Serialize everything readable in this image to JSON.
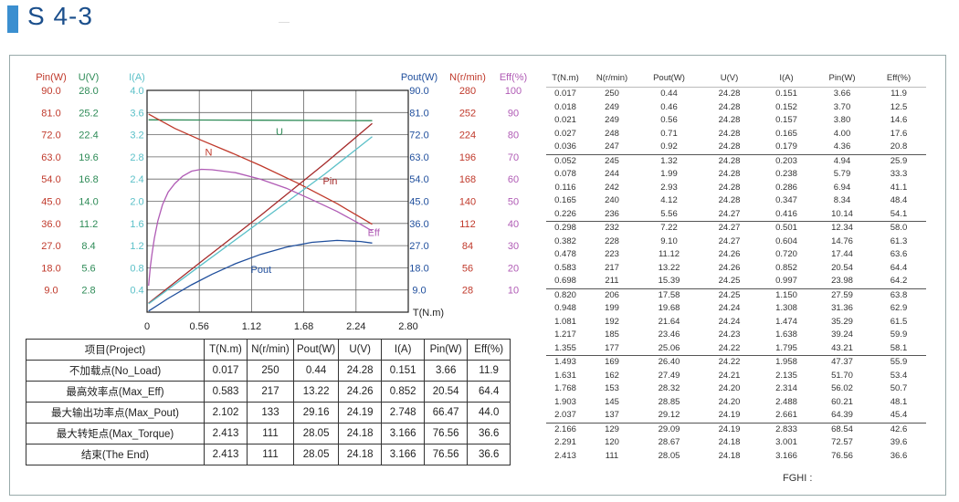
{
  "header": {
    "title": "S 4-3"
  },
  "chart_data": {
    "type": "line",
    "xlabel": "T(N.m)",
    "xlim": [
      0,
      2.8
    ],
    "x_ticks": [
      "0",
      "0.56",
      "1.12",
      "1.68",
      "2.24",
      "2.80"
    ],
    "left_axes": [
      {
        "name": "Pin(W)",
        "color": "#c0392b",
        "ticks": [
          "90.0",
          "81.0",
          "72.0",
          "63.0",
          "54.0",
          "45.0",
          "36.0",
          "27.0",
          "18.0",
          "9.0"
        ]
      },
      {
        "name": "U(V)",
        "color": "#2e8b57",
        "ticks": [
          "28.0",
          "25.2",
          "22.4",
          "19.6",
          "16.8",
          "14.0",
          "11.2",
          "8.4",
          "5.6",
          "2.8"
        ]
      },
      {
        "name": "I(A)",
        "color": "#5bc0c8",
        "ticks": [
          "4.0",
          "3.6",
          "3.2",
          "2.8",
          "2.4",
          "2.0",
          "1.6",
          "1.2",
          "0.8",
          "0.4"
        ]
      }
    ],
    "right_axes": [
      {
        "name": "Pout(W)",
        "color": "#1f4e9c",
        "ticks": [
          "90.0",
          "81.0",
          "72.0",
          "63.0",
          "54.0",
          "45.0",
          "36.0",
          "27.0",
          "18.0",
          "9.0"
        ]
      },
      {
        "name": "N(r/min)",
        "color": "#c0392b",
        "ticks": [
          "280",
          "252",
          "224",
          "196",
          "168",
          "140",
          "112",
          "84",
          "56",
          "28"
        ]
      },
      {
        "name": "Eff(%)",
        "color": "#b05bb5",
        "ticks": [
          "100",
          "90",
          "80",
          "70",
          "60",
          "50",
          "40",
          "30",
          "20",
          "10"
        ]
      }
    ],
    "series": [
      {
        "name": "U",
        "color": "#2e8b57",
        "axis_max": 28,
        "x": [
          0.017,
          0.583,
          1.217,
          1.903,
          2.413
        ],
        "y": [
          24.28,
          24.26,
          24.23,
          24.2,
          24.18
        ]
      },
      {
        "name": "N",
        "color": "#c0392b",
        "axis_max": 280,
        "x": [
          0.017,
          0.298,
          0.583,
          0.948,
          1.217,
          1.631,
          2.037,
          2.413
        ],
        "y": [
          250,
          232,
          217,
          199,
          185,
          162,
          137,
          111
        ]
      },
      {
        "name": "Pin",
        "color": "#a52a2a",
        "axis_max": 90,
        "x": [
          0.017,
          0.583,
          1.217,
          1.903,
          2.413
        ],
        "y": [
          3.66,
          20.54,
          39.24,
          60.21,
          76.56
        ]
      },
      {
        "name": "I",
        "color": "#5bc0c8",
        "axis_max": 4,
        "x": [
          0.017,
          0.583,
          1.217,
          1.903,
          2.413
        ],
        "y": [
          0.151,
          0.852,
          1.638,
          2.488,
          3.166
        ]
      },
      {
        "name": "Pout",
        "color": "#1f4e9c",
        "axis_max": 90,
        "x": [
          0.017,
          0.226,
          0.478,
          0.698,
          0.948,
          1.217,
          1.493,
          1.768,
          2.037,
          2.291,
          2.413
        ],
        "y": [
          0.44,
          5.56,
          11.12,
          15.39,
          19.68,
          23.46,
          26.4,
          28.32,
          29.12,
          28.67,
          28.05
        ]
      },
      {
        "name": "Eff",
        "color": "#b05bb5",
        "axis_max": 100,
        "x": [
          0.017,
          0.036,
          0.052,
          0.078,
          0.116,
          0.165,
          0.226,
          0.298,
          0.382,
          0.478,
          0.583,
          0.698,
          0.948,
          1.217,
          1.493,
          1.768,
          2.037,
          2.291,
          2.413
        ],
        "y": [
          11.9,
          20.8,
          25.9,
          33.3,
          41.1,
          48.4,
          54.1,
          58.0,
          61.3,
          63.6,
          64.4,
          64.2,
          62.9,
          59.9,
          55.9,
          50.7,
          45.4,
          39.6,
          36.6
        ]
      }
    ]
  },
  "project_table": {
    "headers": [
      "项目(Project)",
      "T(N.m)",
      "N(r/min)",
      "Pout(W)",
      "U(V)",
      "I(A)",
      "Pin(W)",
      "Eff(%)"
    ],
    "rows": [
      [
        "不加载点(No_Load)",
        "0.017",
        "250",
        "0.44",
        "24.28",
        "0.151",
        "3.66",
        "11.9"
      ],
      [
        "最高效率点(Max_Eff)",
        "0.583",
        "217",
        "13.22",
        "24.26",
        "0.852",
        "20.54",
        "64.4"
      ],
      [
        "最大输出功率点(Max_Pout)",
        "2.102",
        "133",
        "29.16",
        "24.19",
        "2.748",
        "66.47",
        "44.0"
      ],
      [
        "最大转矩点(Max_Torque)",
        "2.413",
        "111",
        "28.05",
        "24.18",
        "3.166",
        "76.56",
        "36.6"
      ],
      [
        "结束(The End)",
        "2.413",
        "111",
        "28.05",
        "24.18",
        "3.166",
        "76.56",
        "36.6"
      ]
    ]
  },
  "data_table": {
    "headers": [
      "T(N.m)",
      "N(r/min)",
      "Pout(W)",
      "U(V)",
      "I(A)",
      "Pin(W)",
      "Eff(%)"
    ],
    "rows": [
      [
        "0.017",
        "250",
        "0.44",
        "24.28",
        "0.151",
        "3.66",
        "11.9"
      ],
      [
        "0.018",
        "249",
        "0.46",
        "24.28",
        "0.152",
        "3.70",
        "12.5"
      ],
      [
        "0.021",
        "249",
        "0.56",
        "24.28",
        "0.157",
        "3.80",
        "14.6"
      ],
      [
        "0.027",
        "248",
        "0.71",
        "24.28",
        "0.165",
        "4.00",
        "17.6"
      ],
      [
        "0.036",
        "247",
        "0.92",
        "24.28",
        "0.179",
        "4.36",
        "20.8"
      ],
      [
        "0.052",
        "245",
        "1.32",
        "24.28",
        "0.203",
        "4.94",
        "25.9"
      ],
      [
        "0.078",
        "244",
        "1.99",
        "24.28",
        "0.238",
        "5.79",
        "33.3"
      ],
      [
        "0.116",
        "242",
        "2.93",
        "24.28",
        "0.286",
        "6.94",
        "41.1"
      ],
      [
        "0.165",
        "240",
        "4.12",
        "24.28",
        "0.347",
        "8.34",
        "48.4"
      ],
      [
        "0.226",
        "236",
        "5.56",
        "24.27",
        "0.416",
        "10.14",
        "54.1"
      ],
      [
        "0.298",
        "232",
        "7.22",
        "24.27",
        "0.501",
        "12.34",
        "58.0"
      ],
      [
        "0.382",
        "228",
        "9.10",
        "24.27",
        "0.604",
        "14.76",
        "61.3"
      ],
      [
        "0.478",
        "223",
        "11.12",
        "24.26",
        "0.720",
        "17.44",
        "63.6"
      ],
      [
        "0.583",
        "217",
        "13.22",
        "24.26",
        "0.852",
        "20.54",
        "64.4"
      ],
      [
        "0.698",
        "211",
        "15.39",
        "24.25",
        "0.997",
        "23.98",
        "64.2"
      ],
      [
        "0.820",
        "206",
        "17.58",
        "24.25",
        "1.150",
        "27.59",
        "63.8"
      ],
      [
        "0.948",
        "199",
        "19.68",
        "24.24",
        "1.308",
        "31.36",
        "62.9"
      ],
      [
        "1.081",
        "192",
        "21.64",
        "24.24",
        "1.474",
        "35.29",
        "61.5"
      ],
      [
        "1.217",
        "185",
        "23.46",
        "24.23",
        "1.638",
        "39.24",
        "59.9"
      ],
      [
        "1.355",
        "177",
        "25.06",
        "24.22",
        "1.795",
        "43.21",
        "58.1"
      ],
      [
        "1.493",
        "169",
        "26.40",
        "24.22",
        "1.958",
        "47.37",
        "55.9"
      ],
      [
        "1.631",
        "162",
        "27.49",
        "24.21",
        "2.135",
        "51.70",
        "53.4"
      ],
      [
        "1.768",
        "153",
        "28.32",
        "24.20",
        "2.314",
        "56.02",
        "50.7"
      ],
      [
        "1.903",
        "145",
        "28.85",
        "24.20",
        "2.488",
        "60.21",
        "48.1"
      ],
      [
        "2.037",
        "137",
        "29.12",
        "24.19",
        "2.661",
        "64.39",
        "45.4"
      ],
      [
        "2.166",
        "129",
        "29.09",
        "24.19",
        "2.833",
        "68.54",
        "42.6"
      ],
      [
        "2.291",
        "120",
        "28.67",
        "24.18",
        "3.001",
        "72.57",
        "39.6"
      ],
      [
        "2.413",
        "111",
        "28.05",
        "24.18",
        "3.166",
        "76.56",
        "36.6"
      ]
    ]
  },
  "footer": {
    "fghi": "FGHI      :"
  }
}
